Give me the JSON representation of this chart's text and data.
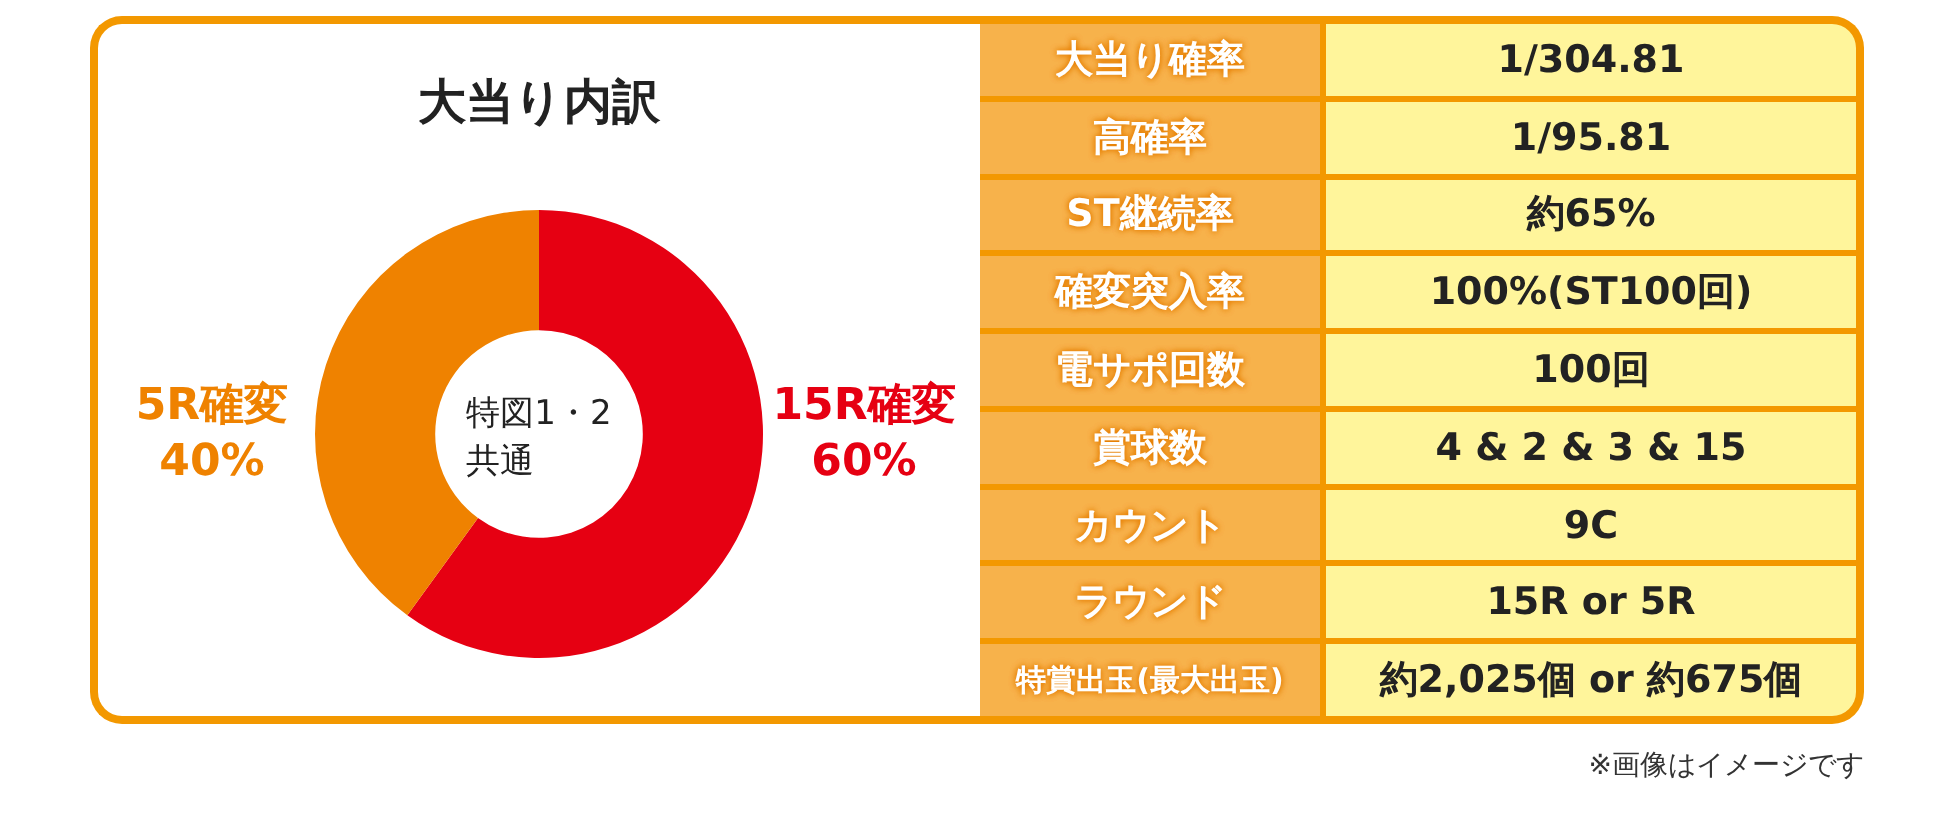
{
  "chart_data": [
    {
      "type": "donut",
      "title": "大当り内訳",
      "categories": [
        "15R確変",
        "5R確変"
      ],
      "values": [
        60,
        40
      ],
      "colors": [
        "#e60012",
        "#ef8200"
      ],
      "value_labels": [
        "60%",
        "40%"
      ],
      "annotations": [
        "特図1・2\n共通",
        "※画像はイメージです"
      ]
    },
    {
      "type": "other",
      "annotations": [
        "大当り確率",
        "1/304.81",
        "高確率",
        "1/95.81",
        "ST継続率",
        "約65%",
        "確変突入率",
        "100%(ST100回)",
        "電サポ回数",
        "100回",
        "賞球数",
        "4 & 2 & 3 & 15",
        "カウント",
        "9C",
        "ラウンド",
        "15R or 5R",
        "特賞出玉(最大出玉)",
        "約2,025個 or 約675個"
      ]
    }
  ]
}
